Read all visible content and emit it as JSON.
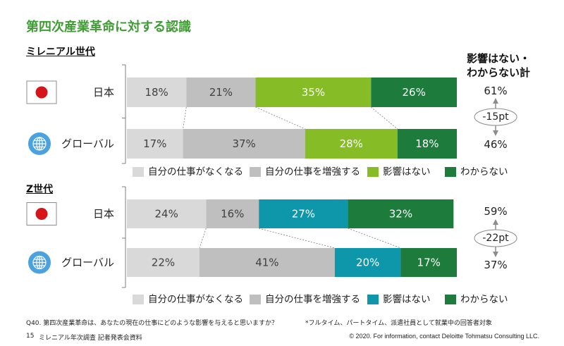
{
  "slide": {
    "title": "第四次産業革命に対する認識",
    "question": "Q40. 第四次産業革命は、あなたの現在の仕事にどのような影響を与えると思いますか？",
    "note": "*フルタイム、パートタイム、派遣社員として就業中の回答者対象",
    "page_number": "15",
    "document_title": "ミレニアル年次調査 記者発表会資料",
    "copyright": "© 2020. For information, contact Deloitte Tohmatsu Consulting LLC."
  },
  "colors": {
    "title": "#409c34",
    "neutral_text": "#404040"
  },
  "summary_header": {
    "lines": [
      "影響はない・",
      "わからない計"
    ]
  },
  "chart_data": [
    {
      "type": "bar",
      "orientation": "horizontal",
      "stacked": true,
      "title": "ミレニアル世代",
      "categories": [
        "日本",
        "グローバル"
      ],
      "category_icons": [
        "japan-flag-icon",
        "globe-icon"
      ],
      "xlim": [
        0,
        100
      ],
      "grid": false,
      "legend_position": "bottom",
      "series": [
        {
          "name": "自分の仕事がなくなる",
          "values": [
            18,
            17
          ],
          "labels": [
            "18%",
            "17%"
          ],
          "color": "#d9d9d9"
        },
        {
          "name": "自分の仕事を増強する",
          "values": [
            21,
            37
          ],
          "labels": [
            "21%",
            "37%"
          ],
          "color": "#bfbfbf"
        },
        {
          "name": "影響はない",
          "values": [
            35,
            28
          ],
          "labels": [
            "35%",
            "28%"
          ],
          "color": "#86bc25"
        },
        {
          "name": "わからない",
          "values": [
            26,
            18
          ],
          "labels": [
            "26%",
            "18%"
          ],
          "color": "#1d7b3b"
        }
      ],
      "summary": {
        "labels": [
          "61%",
          "46%"
        ],
        "difference": "-15pt"
      }
    },
    {
      "type": "bar",
      "orientation": "horizontal",
      "stacked": true,
      "title": "Z世代",
      "categories": [
        "日本",
        "グローバル"
      ],
      "category_icons": [
        "japan-flag-icon",
        "globe-icon"
      ],
      "xlim": [
        0,
        100
      ],
      "grid": false,
      "legend_position": "bottom",
      "series": [
        {
          "name": "自分の仕事がなくなる",
          "values": [
            24,
            22
          ],
          "labels": [
            "24%",
            "22%"
          ],
          "color": "#d9d9d9"
        },
        {
          "name": "自分の仕事を増強する",
          "values": [
            16,
            41
          ],
          "labels": [
            "16%",
            "41%"
          ],
          "color": "#bfbfbf"
        },
        {
          "name": "影響はない",
          "values": [
            27,
            20
          ],
          "labels": [
            "27%",
            "20%"
          ],
          "color": "#0e97ab"
        },
        {
          "name": "わからない",
          "values": [
            32,
            17
          ],
          "labels": [
            "32%",
            "17%"
          ],
          "color": "#1d7b3b"
        }
      ],
      "summary": {
        "labels": [
          "59%",
          "37%"
        ],
        "difference": "-22pt"
      }
    }
  ]
}
